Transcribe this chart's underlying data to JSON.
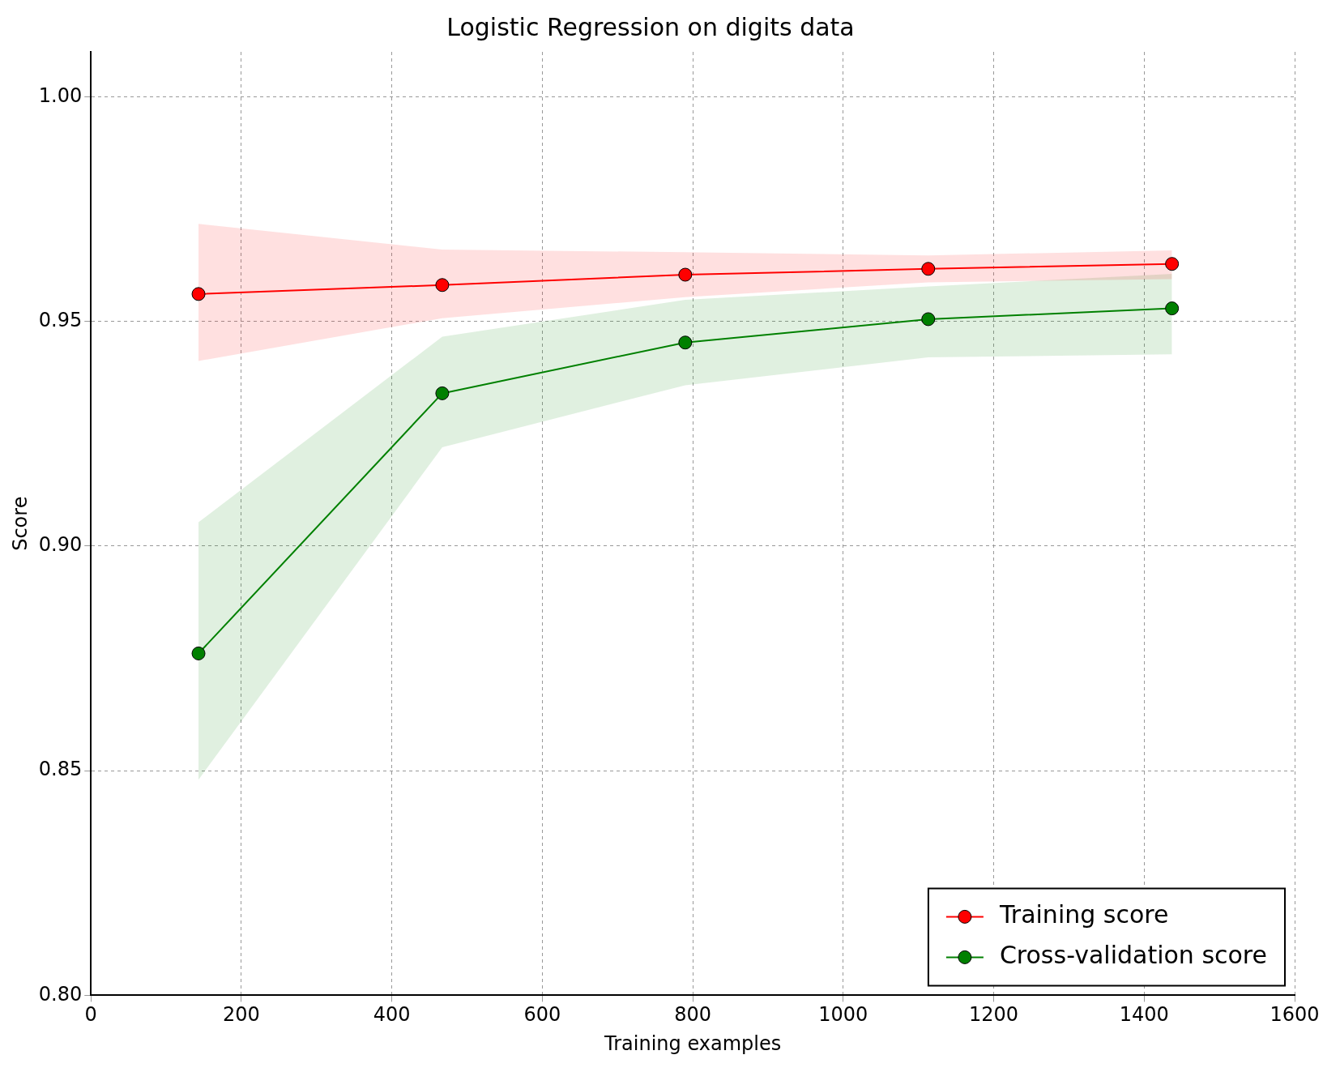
{
  "chart_data": {
    "type": "line",
    "title": "Logistic Regression on digits data",
    "xlabel": "Training examples",
    "ylabel": "Score",
    "x": [
      143,
      467,
      790,
      1113,
      1437
    ],
    "series": [
      {
        "name": "Training score",
        "color": "#ff0000",
        "values": [
          0.9561,
          0.9581,
          0.9604,
          0.9617,
          0.9628
        ],
        "lower": [
          0.9412,
          0.9507,
          0.9554,
          0.9587,
          0.9594
        ],
        "upper": [
          0.9717,
          0.966,
          0.9654,
          0.9647,
          0.9658
        ]
      },
      {
        "name": "Cross-validation score",
        "color": "#008000",
        "values": [
          0.8761,
          0.934,
          0.9453,
          0.9505,
          0.9529
        ],
        "lower": [
          0.848,
          0.922,
          0.9358,
          0.942,
          0.9427
        ],
        "upper": [
          0.9053,
          0.9466,
          0.9548,
          0.9578,
          0.9606
        ]
      }
    ],
    "xlim": [
      0,
      1600
    ],
    "xticks": [
      0,
      200,
      400,
      600,
      800,
      1000,
      1200,
      1400,
      1600
    ],
    "ylim": [
      0.8,
      1.01
    ],
    "yticks": [
      {
        "value": 0.8,
        "label": "0.80"
      },
      {
        "value": 0.85,
        "label": "0.85"
      },
      {
        "value": 0.9,
        "label": "0.90"
      },
      {
        "value": 0.95,
        "label": "0.95"
      },
      {
        "value": 1.0,
        "label": "1.00"
      }
    ],
    "grid": true,
    "legend": "bottom right",
    "marker": "circle",
    "line_style": "solid"
  }
}
